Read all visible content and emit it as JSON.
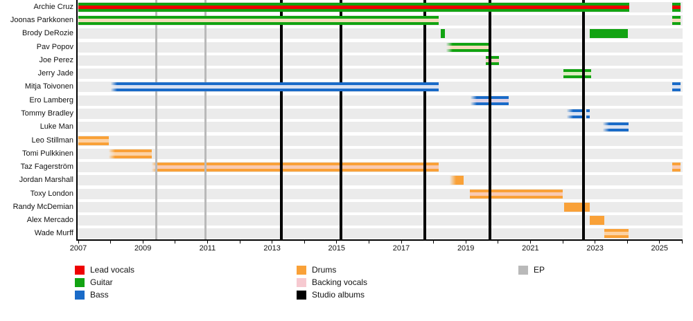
{
  "chart_data": {
    "type": "timeline",
    "description": "Band member timeline Gantt chart, 2007-2025",
    "x_axis": {
      "min_year": 2007,
      "max_year": 2025.72,
      "tick_years": [
        2007,
        2008,
        2009,
        2010,
        2011,
        2012,
        2013,
        2014,
        2015,
        2016,
        2017,
        2018,
        2019,
        2020,
        2021,
        2022,
        2023,
        2024,
        2025
      ],
      "label_years": [
        2007,
        2009,
        2011,
        2013,
        2015,
        2017,
        2019,
        2021,
        2023,
        2025
      ]
    },
    "colors": {
      "lead_vocals": "#ee0202",
      "guitar": "#12a312",
      "bass": "#1a6bc8",
      "drums": "#f9a138",
      "backing_vocals": "#f6c9d0",
      "studio_album_line": "#000000",
      "ep_line": "#b9b9b9",
      "row_band": "#ebebeb"
    },
    "members": [
      {
        "name": "Archie Cruz",
        "roles": "Lead vocals, Guitar",
        "bars": [
          {
            "from": 2007.0,
            "to": 2024.06,
            "color": "#12a312",
            "stripe": "#ee0202",
            "front": true
          },
          {
            "from": 2025.4,
            "to": 2025.65,
            "color": "#12a312",
            "stripe": "#ee0202",
            "front": true
          }
        ]
      },
      {
        "name": "Joonas Parkkonen",
        "roles": "Guitar, Backing vocals",
        "bars": [
          {
            "from": 2007.0,
            "to": 2018.16,
            "color": "#12a312",
            "stripe": "#f3dcba",
            "front": true
          },
          {
            "from": 2025.4,
            "to": 2025.65,
            "color": "#12a312",
            "stripe": "#f3dcba",
            "front": true
          }
        ]
      },
      {
        "name": "Brody DeRozie",
        "roles": "Guitar",
        "bars": [
          {
            "from": 2018.22,
            "to": 2018.36,
            "color": "#12a312"
          },
          {
            "from": 2022.84,
            "to": 2024.02,
            "color": "#12a312"
          }
        ]
      },
      {
        "name": "Pav Popov",
        "roles": "Guitar, Backing vocals",
        "bars": [
          {
            "from": 2018.4,
            "to": 2019.7,
            "color": "#12a312",
            "stripe": "#f3dcba",
            "fade_left": true
          }
        ]
      },
      {
        "name": "Joe Perez",
        "roles": "Guitar, Backing vocals",
        "bars": [
          {
            "from": 2019.62,
            "to": 2020.02,
            "color": "#12a312",
            "stripe": "#f3d1c6"
          }
        ]
      },
      {
        "name": "Jerry Jade",
        "roles": "Guitar",
        "bars": [
          {
            "from": 2022.02,
            "to": 2022.88,
            "color": "#12a312",
            "stripe": "#dcedc0"
          }
        ]
      },
      {
        "name": "Mitja Toivonen",
        "roles": "Bass, Backing vocals",
        "bars": [
          {
            "from": 2008.0,
            "to": 2018.16,
            "color": "#1a6bc8",
            "stripe": "#d8e1f1",
            "fade_left": true,
            "front": true
          },
          {
            "from": 2025.4,
            "to": 2025.65,
            "color": "#1a6bc8",
            "stripe": "#d8e1f1",
            "front": true
          }
        ]
      },
      {
        "name": "Ero Lamberg",
        "roles": "Bass, Backing vocals",
        "bars": [
          {
            "from": 2019.14,
            "to": 2020.32,
            "color": "#1a6bc8",
            "stripe": "#ded2e4",
            "fade_left": true
          }
        ]
      },
      {
        "name": "Tommy Bradley",
        "roles": "Bass",
        "bars": [
          {
            "from": 2022.12,
            "to": 2022.66,
            "color": "#1a6bc8",
            "stripe": "#d8e1f1",
            "fade_left": true
          },
          {
            "from": 2022.74,
            "to": 2022.83,
            "color": "#1a6bc8",
            "stripe": "#d8e1f1"
          }
        ]
      },
      {
        "name": "Luke Man",
        "roles": "Bass",
        "bars": [
          {
            "from": 2023.24,
            "to": 2024.04,
            "color": "#1a6bc8",
            "stripe": "#d8e1f1",
            "fade_left": true
          }
        ]
      },
      {
        "name": "Leo Stillman",
        "roles": "Drums",
        "bars": [
          {
            "from": 2007.0,
            "to": 2007.94,
            "color": "#f9a138",
            "stripe": "#fcd2a4"
          }
        ]
      },
      {
        "name": "Tomi Pulkkinen",
        "roles": "Drums",
        "bars": [
          {
            "from": 2007.94,
            "to": 2009.27,
            "color": "#f9a138",
            "stripe": "#fcd2a4",
            "fade_left": true
          }
        ]
      },
      {
        "name": "Taz Fagerström",
        "roles": "Drums, Backing vocals",
        "bars": [
          {
            "from": 2009.27,
            "to": 2018.16,
            "color": "#f9a138",
            "stripe": "#f9cab2",
            "fade_left": true
          },
          {
            "from": 2025.4,
            "to": 2025.65,
            "color": "#f9a138",
            "stripe": "#f9cab2"
          }
        ]
      },
      {
        "name": "Jordan Marshall",
        "roles": "Drums",
        "bars": [
          {
            "from": 2018.5,
            "to": 2018.93,
            "color": "#f9a138",
            "fade_left": true
          }
        ]
      },
      {
        "name": "Toxy London",
        "roles": "Drums",
        "bars": [
          {
            "from": 2019.12,
            "to": 2022.0,
            "color": "#f9a138",
            "stripe": "#f9cab2"
          }
        ]
      },
      {
        "name": "Randy McDemian",
        "roles": "Drums",
        "bars": [
          {
            "from": 2022.04,
            "to": 2022.84,
            "color": "#f9a138"
          }
        ]
      },
      {
        "name": "Alex Mercado",
        "roles": "Drums",
        "bars": [
          {
            "from": 2022.84,
            "to": 2023.28,
            "color": "#f9a138"
          }
        ]
      },
      {
        "name": "Wade Murff",
        "roles": "Drums",
        "bars": [
          {
            "from": 2023.28,
            "to": 2024.04,
            "color": "#f9a138",
            "stripe": "#fcd2a4"
          }
        ]
      }
    ],
    "studio_album_years": [
      2013.29,
      2015.13,
      2017.73,
      2019.75,
      2022.64
    ],
    "ep_years": [
      2009.42,
      2010.93
    ],
    "legend": {
      "columns": [
        {
          "items": [
            {
              "label": "Lead vocals",
              "color": "#ee0202"
            },
            {
              "label": "Guitar",
              "color": "#12a312"
            },
            {
              "label": "Bass",
              "color": "#1a6bc8"
            }
          ]
        },
        {
          "items": [
            {
              "label": "Drums",
              "color": "#f9a138"
            },
            {
              "label": "Backing vocals",
              "color": "#f6c9d0"
            },
            {
              "label": "Studio albums",
              "color": "#000000"
            }
          ]
        },
        {
          "items": [
            {
              "label": "EP",
              "color": "#b9b9b9"
            }
          ]
        }
      ]
    }
  }
}
